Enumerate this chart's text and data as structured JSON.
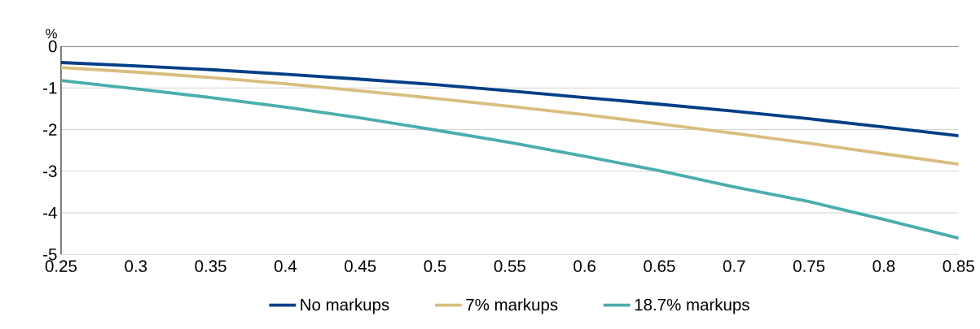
{
  "chart_data": {
    "type": "line",
    "ylabel": "%",
    "x": [
      0.25,
      0.3,
      0.35,
      0.4,
      0.45,
      0.5,
      0.55,
      0.6,
      0.65,
      0.7,
      0.75,
      0.8,
      0.85
    ],
    "series": [
      {
        "name": "No markups",
        "color": "#003f87",
        "values": [
          -0.39,
          -0.47,
          -0.56,
          -0.67,
          -0.79,
          -0.92,
          -1.07,
          -1.23,
          -1.39,
          -1.56,
          -1.74,
          -1.94,
          -2.15
        ]
      },
      {
        "name": "7% markups",
        "color": "#d8be7e",
        "values": [
          -0.51,
          -0.62,
          -0.75,
          -0.9,
          -1.07,
          -1.25,
          -1.44,
          -1.64,
          -1.86,
          -2.09,
          -2.33,
          -2.58,
          -2.83
        ]
      },
      {
        "name": "18.7% markups",
        "color": "#4aaeac",
        "values": [
          -0.82,
          -1.02,
          -1.23,
          -1.46,
          -1.72,
          -2.01,
          -2.31,
          -2.64,
          -2.99,
          -3.38,
          -3.73,
          -4.16,
          -4.61
        ]
      }
    ],
    "xlim": [
      0.25,
      0.85
    ],
    "ylim": [
      -5,
      0
    ],
    "xticks": [
      0.25,
      0.3,
      0.35,
      0.4,
      0.45,
      0.5,
      0.55,
      0.6,
      0.65,
      0.7,
      0.75,
      0.8,
      0.85
    ],
    "yticks": [
      -5,
      -4,
      -3,
      -2,
      -1,
      0
    ],
    "grid": "y",
    "legend": "bottom",
    "marker": "none",
    "line_style": "solid"
  }
}
